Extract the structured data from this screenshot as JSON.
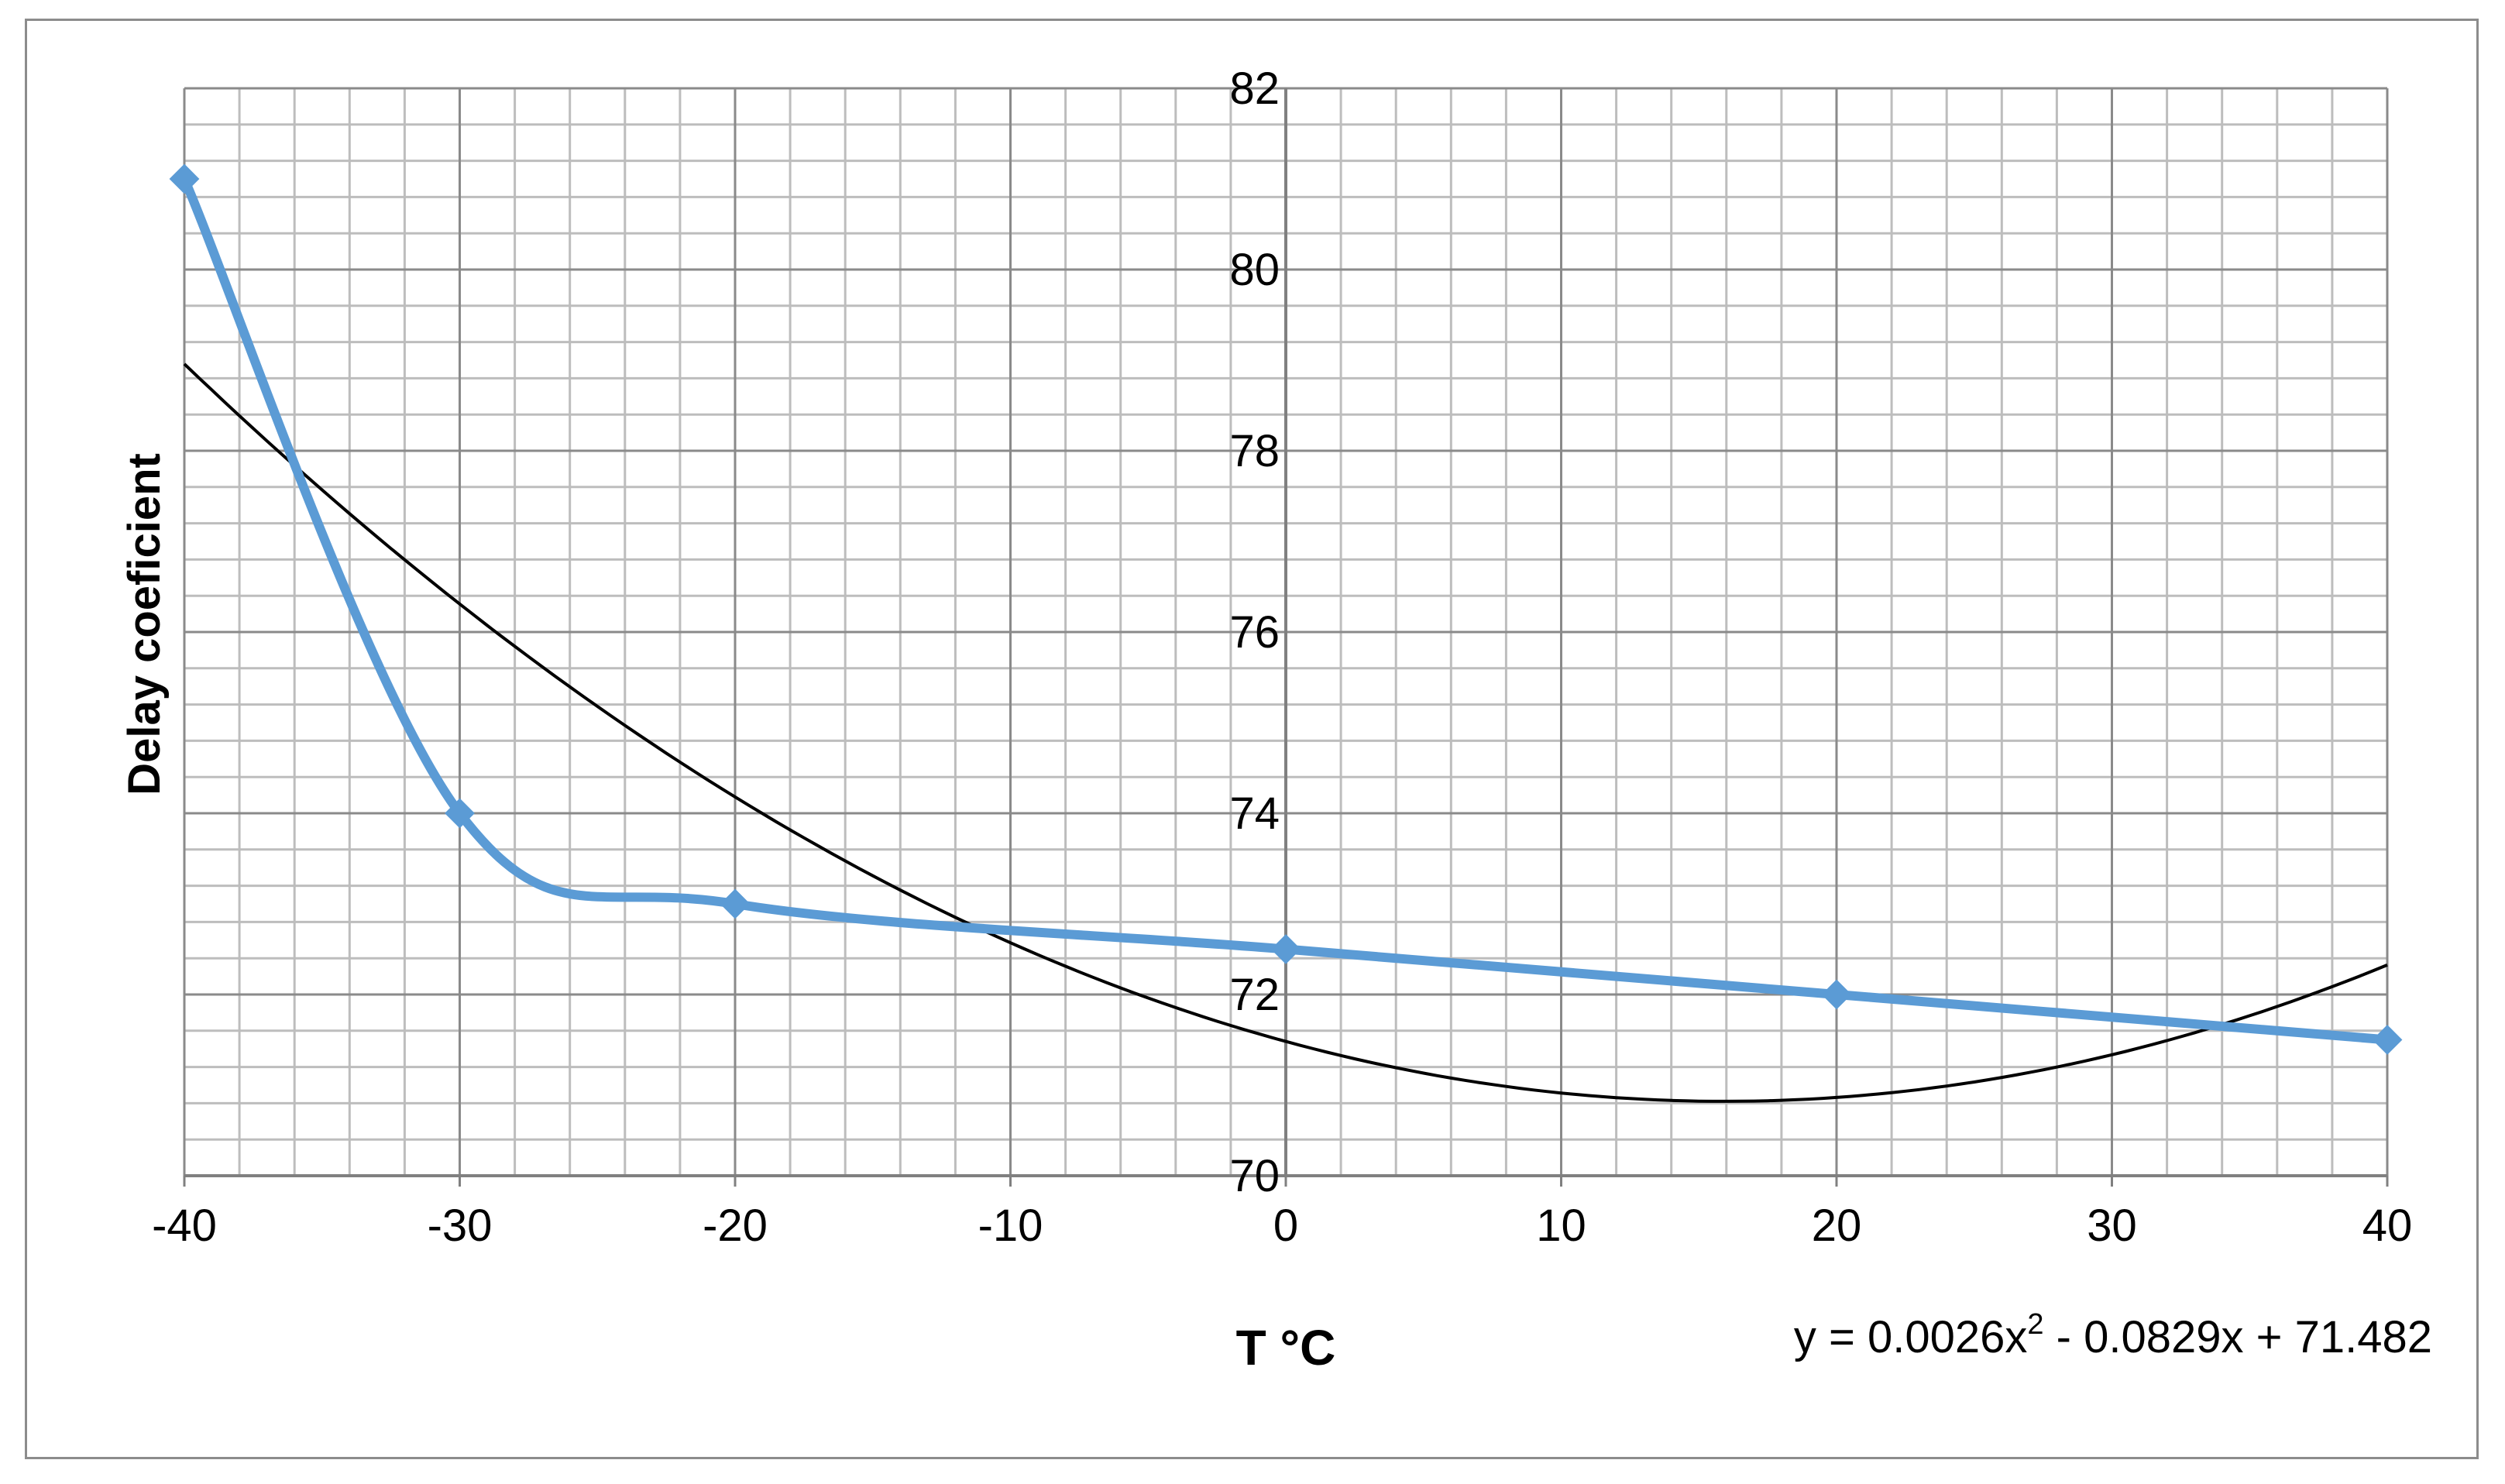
{
  "chart_data": {
    "type": "line",
    "title": "",
    "xlabel": "T °C",
    "ylabel": "Delay coeficient",
    "xlim": [
      -40,
      40
    ],
    "ylim": [
      70,
      82
    ],
    "x_ticks": [
      "-40",
      "-30",
      "-20",
      "-10",
      "0",
      "10",
      "20",
      "30",
      "40"
    ],
    "y_ticks": [
      "70",
      "72",
      "74",
      "76",
      "78",
      "80",
      "82"
    ],
    "grid": true,
    "legend": "none",
    "series": [
      {
        "color": "#5b9bd5",
        "marker": "diamond",
        "smoothed": true,
        "x": [
          -40,
          -30,
          -20,
          0,
          20,
          40
        ],
        "y": [
          81,
          74,
          73,
          72.5,
          72,
          71.5
        ]
      }
    ],
    "trendline": {
      "type": "polynomial",
      "order": 2,
      "color": "#000000",
      "coefficients": [
        0.0026,
        -0.0829,
        71.482
      ],
      "equation_parts": {
        "lhs": "y = 0.0026x",
        "exp": "2",
        "rhs": " - 0.0829x + 71.482"
      }
    }
  }
}
